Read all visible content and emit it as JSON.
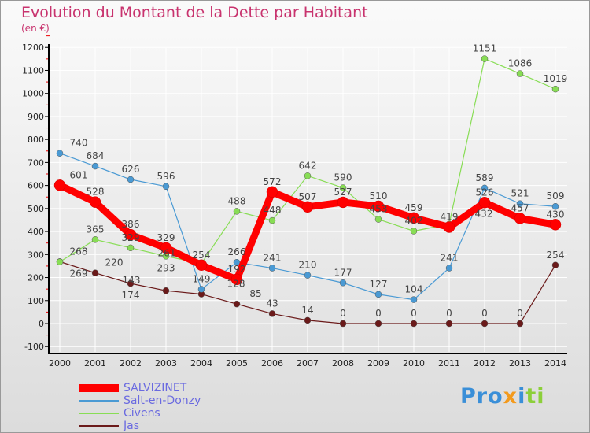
{
  "title": "Evolution du Montant de la Dette par Habitant",
  "unit": "(en €)",
  "logo": "Proxiti",
  "chart_data": {
    "type": "line",
    "title": "Evolution du Montant de la Dette par Habitant",
    "ylabel": "(en €)",
    "x": [
      2000,
      2001,
      2002,
      2003,
      2004,
      2005,
      2006,
      2007,
      2008,
      2009,
      2010,
      2011,
      2012,
      2013,
      2014
    ],
    "ylim": [
      -100,
      1200
    ],
    "yticks": [
      -100,
      0,
      100,
      200,
      300,
      400,
      500,
      600,
      700,
      800,
      900,
      1000,
      1100,
      1200
    ],
    "grid": true,
    "legend": "bottom-left",
    "series": [
      {
        "name": "SALVIZINET",
        "color": "#ff0000",
        "values": [
          601,
          528,
          386,
          329,
          254,
          192,
          572,
          507,
          527,
          510,
          459,
          419,
          526,
          457,
          430
        ]
      },
      {
        "name": "Salt-en-Donzy",
        "color": "#4a9ad4",
        "values": [
          740,
          684,
          626,
          596,
          149,
          266,
          241,
          210,
          177,
          127,
          104,
          241,
          589,
          521,
          509
        ]
      },
      {
        "name": "Civens",
        "color": "#88dd55",
        "values": [
          268,
          365,
          329,
          293,
          261,
          488,
          448,
          642,
          590,
          453,
          402,
          432,
          1151,
          1086,
          1019
        ]
      },
      {
        "name": "Jas",
        "color": "#6b1a1a",
        "values": [
          269,
          220,
          174,
          143,
          128,
          85,
          43,
          14,
          0,
          0,
          0,
          0,
          0,
          0,
          254
        ]
      }
    ]
  }
}
